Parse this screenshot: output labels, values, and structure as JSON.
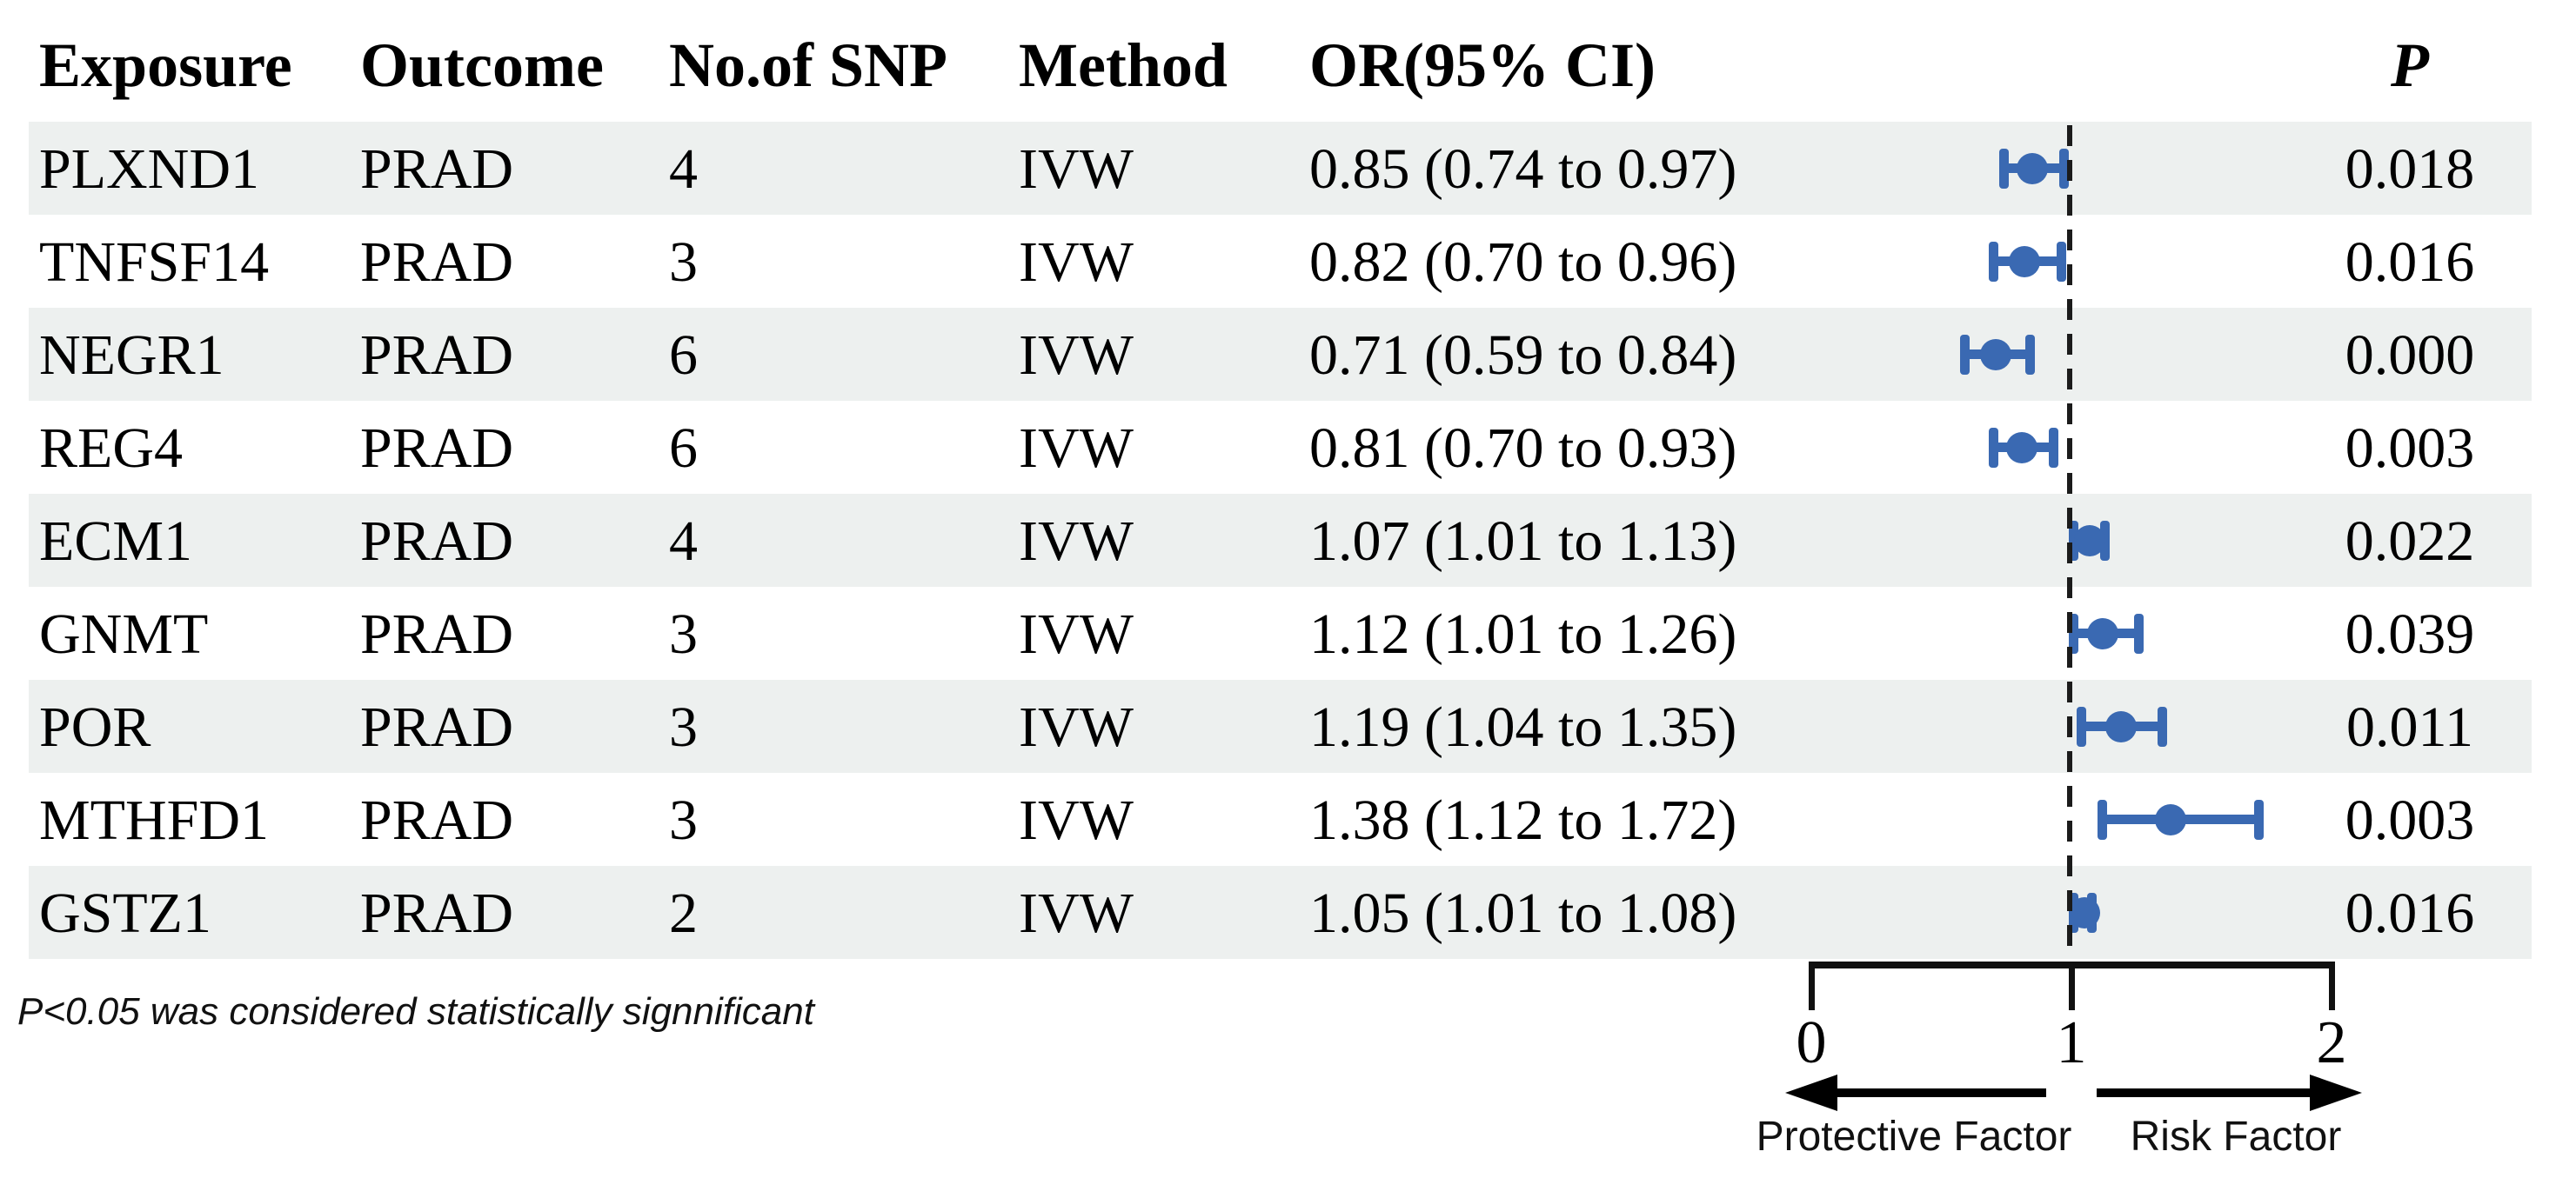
{
  "table": {
    "headers": {
      "exposure": "Exposure",
      "outcome": "Outcome",
      "snp": "No.of SNP",
      "method": "Method",
      "or_ci": "OR(95% CI)",
      "p": "P"
    },
    "rows": [
      {
        "exposure": "PLXND1",
        "outcome": "PRAD",
        "snp": "4",
        "method": "IVW",
        "or_ci": "0.85 (0.74 to 0.97)",
        "p": "0.018",
        "or": 0.85,
        "lo": 0.74,
        "hi": 0.97
      },
      {
        "exposure": "TNFSF14",
        "outcome": "PRAD",
        "snp": "3",
        "method": "IVW",
        "or_ci": "0.82 (0.70 to 0.96)",
        "p": "0.016",
        "or": 0.82,
        "lo": 0.7,
        "hi": 0.96
      },
      {
        "exposure": "NEGR1",
        "outcome": "PRAD",
        "snp": "6",
        "method": "IVW",
        "or_ci": "0.71 (0.59 to 0.84)",
        "p": "0.000",
        "or": 0.71,
        "lo": 0.59,
        "hi": 0.84
      },
      {
        "exposure": "REG4",
        "outcome": "PRAD",
        "snp": "6",
        "method": "IVW",
        "or_ci": "0.81 (0.70 to 0.93)",
        "p": "0.003",
        "or": 0.81,
        "lo": 0.7,
        "hi": 0.93
      },
      {
        "exposure": "ECM1",
        "outcome": "PRAD",
        "snp": "4",
        "method": "IVW",
        "or_ci": "1.07 (1.01 to 1.13)",
        "p": "0.022",
        "or": 1.07,
        "lo": 1.01,
        "hi": 1.13
      },
      {
        "exposure": "GNMT",
        "outcome": "PRAD",
        "snp": "3",
        "method": "IVW",
        "or_ci": "1.12 (1.01 to 1.26)",
        "p": "0.039",
        "or": 1.12,
        "lo": 1.01,
        "hi": 1.26
      },
      {
        "exposure": "POR",
        "outcome": "PRAD",
        "snp": "3",
        "method": "IVW",
        "or_ci": "1.19 (1.04 to 1.35)",
        "p": "0.011",
        "or": 1.19,
        "lo": 1.04,
        "hi": 1.35
      },
      {
        "exposure": "MTHFD1",
        "outcome": "PRAD",
        "snp": "3",
        "method": "IVW",
        "or_ci": "1.38 (1.12 to 1.72)",
        "p": "0.003",
        "or": 1.38,
        "lo": 1.12,
        "hi": 1.72
      },
      {
        "exposure": "GSTZ1",
        "outcome": "PRAD",
        "snp": "2",
        "method": "IVW",
        "or_ci": "1.05 (1.01 to 1.08)",
        "p": "0.016",
        "or": 1.05,
        "lo": 1.01,
        "hi": 1.08
      }
    ]
  },
  "axis": {
    "ticks": [
      "0",
      "1",
      "2"
    ],
    "reference": "1",
    "left_label": "Protective Factor",
    "right_label": "Risk Factor"
  },
  "footnote": "P<0.05 was considered statistically signnificant",
  "colors": {
    "marker_blue": "#3a69b2",
    "row_band": "#edf0ef",
    "text": "#000000"
  },
  "chart_data": {
    "type": "scatter",
    "subtype": "forest-plot",
    "title": "",
    "categories": [
      "PLXND1",
      "TNFSF14",
      "NEGR1",
      "REG4",
      "ECM1",
      "GNMT",
      "POR",
      "MTHFD1",
      "GSTZ1"
    ],
    "outcome": [
      "PRAD",
      "PRAD",
      "PRAD",
      "PRAD",
      "PRAD",
      "PRAD",
      "PRAD",
      "PRAD",
      "PRAD"
    ],
    "method": [
      "IVW",
      "IVW",
      "IVW",
      "IVW",
      "IVW",
      "IVW",
      "IVW",
      "IVW",
      "IVW"
    ],
    "n_snp": [
      4,
      3,
      6,
      6,
      4,
      3,
      3,
      3,
      2
    ],
    "series": [
      {
        "name": "OR",
        "values": [
          0.85,
          0.82,
          0.71,
          0.81,
          1.07,
          1.12,
          1.19,
          1.38,
          1.05
        ]
      },
      {
        "name": "CI_low",
        "values": [
          0.74,
          0.7,
          0.59,
          0.7,
          1.01,
          1.01,
          1.04,
          1.12,
          1.01
        ]
      },
      {
        "name": "CI_high",
        "values": [
          0.97,
          0.96,
          0.84,
          0.93,
          1.13,
          1.26,
          1.35,
          1.72,
          1.08
        ]
      },
      {
        "name": "P",
        "values": [
          0.018,
          0.016,
          0.0,
          0.003,
          0.022,
          0.039,
          0.011,
          0.003,
          0.016
        ]
      }
    ],
    "xlabel": "",
    "ylabel": "",
    "xlim": [
      0,
      2
    ],
    "x_ticks": [
      0,
      1,
      2
    ],
    "reference_line_x": 1,
    "grid": false,
    "legend": false,
    "annotations": [
      "Protective Factor (left arrow)",
      "Risk Factor (right arrow)",
      "P<0.05 was considered statistically signnificant"
    ]
  }
}
